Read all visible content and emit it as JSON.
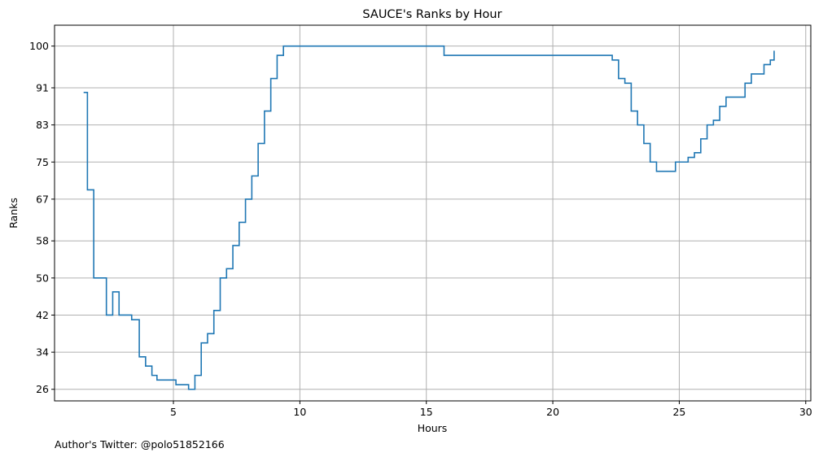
{
  "chart_data": {
    "type": "line",
    "title": "SAUCE's Ranks by Hour",
    "xlabel": "Hours",
    "ylabel": "Ranks",
    "xlim": [
      0.3,
      30.2
    ],
    "ylim": [
      104.5,
      23.5
    ],
    "xticks": [
      5,
      10,
      15,
      20,
      25,
      30
    ],
    "yticks": [
      26,
      34,
      42,
      50,
      58,
      67,
      75,
      83,
      91,
      100
    ],
    "grid": true,
    "step": "post",
    "series": [
      {
        "color": "#1f77b4",
        "x": [
          1.45,
          1.6,
          1.85,
          2.35,
          2.6,
          2.85,
          3.35,
          3.65,
          3.9,
          4.15,
          4.35,
          5.1,
          5.6,
          5.85,
          6.1,
          6.35,
          6.6,
          6.85,
          7.1,
          7.35,
          7.6,
          7.85,
          8.1,
          8.35,
          8.6,
          8.85,
          9.1,
          9.35,
          15.7,
          22.1,
          22.35,
          22.6,
          22.85,
          23.1,
          23.35,
          23.6,
          23.85,
          24.1,
          24.85,
          25.35,
          25.6,
          25.85,
          26.1,
          26.35,
          26.6,
          26.85,
          27.6,
          27.85,
          28.35,
          28.6,
          28.75
        ],
        "y": [
          90,
          69,
          50,
          42,
          47,
          42,
          41,
          33,
          31,
          29,
          28,
          27,
          26,
          29,
          36,
          38,
          43,
          50,
          52,
          57,
          62,
          67,
          72,
          79,
          86,
          93,
          98,
          100,
          98,
          98,
          97,
          93,
          92,
          86,
          83,
          79,
          75,
          73,
          75,
          76,
          77,
          80,
          83,
          84,
          87,
          89,
          92,
          94,
          96,
          97,
          99
        ]
      }
    ],
    "footer": "Author's Twitter: @polo51852166"
  }
}
